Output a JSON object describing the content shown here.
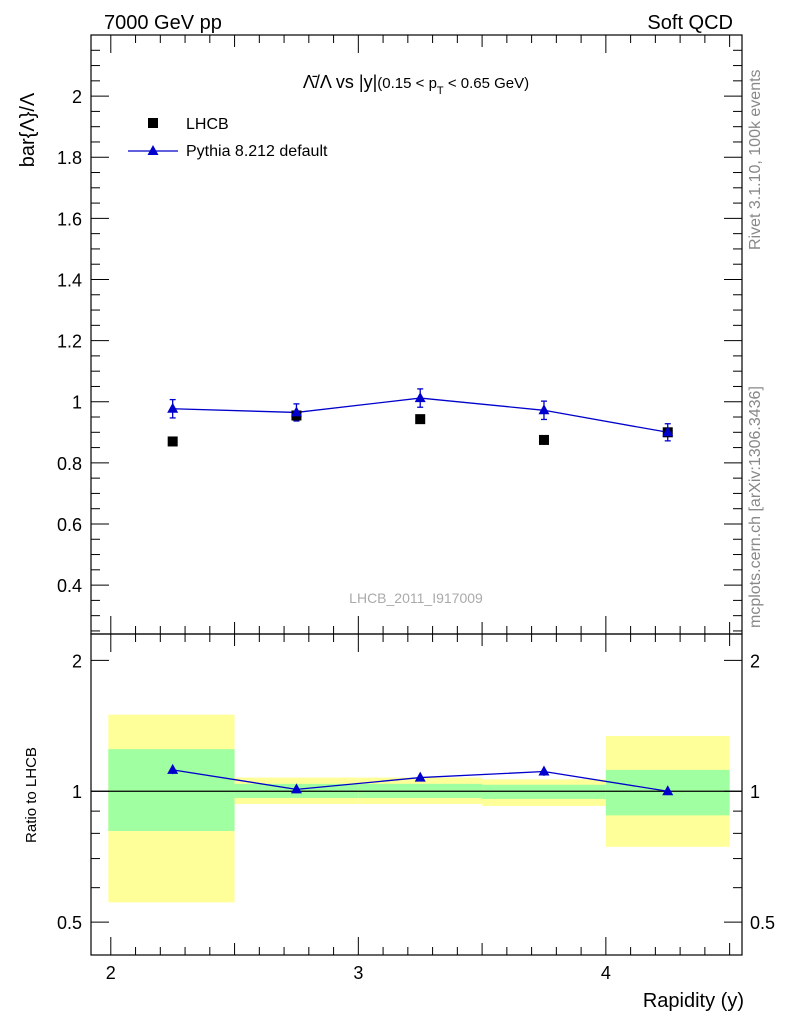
{
  "header": {
    "left": "7000 GeV pp",
    "right": "Soft QCD"
  },
  "side_labels": {
    "rivet": "Rivet 3.1.10,  100k events",
    "source": "mcplots.cern.ch [arXiv:1306.3436]"
  },
  "watermark": "LHCB_2011_I917009",
  "colors": {
    "mc": "#0000cc",
    "data": "#000000",
    "band_inner": "#a0ff a0",
    "band_outer": "#ffff99"
  },
  "chart_data": [
    {
      "type": "scatter",
      "panel": "main",
      "title": {
        "prefix": "Λ̄/Λ vs |y|",
        "suffix": "(0.15 < p",
        "sub": "T",
        "end": " < 0.65 GeV)"
      },
      "ylabel": "bar{Λ}/Λ",
      "xlim": [
        1.92,
        4.55
      ],
      "ylim": [
        0.24,
        2.2
      ],
      "yticks": [
        0.4,
        0.6,
        0.8,
        1,
        1.2,
        1.4,
        1.6,
        1.8,
        2
      ],
      "ytick_labels": [
        "0.4",
        "0.6",
        "0.8",
        "1",
        "1.2",
        "1.4",
        "1.6",
        "1.8",
        "2"
      ],
      "legend_position": "top-left",
      "series": [
        {
          "name": "LHCB",
          "kind": "data",
          "x": [
            2.25,
            2.75,
            3.25,
            3.75,
            4.25
          ],
          "y": [
            0.87,
            0.955,
            0.943,
            0.875,
            0.9
          ]
        },
        {
          "name": "Pythia 8.212 default",
          "kind": "mc",
          "x": [
            2.25,
            2.75,
            3.25,
            3.75,
            4.25
          ],
          "y": [
            0.977,
            0.965,
            1.012,
            0.972,
            0.9
          ],
          "yerr": [
            0.03,
            0.028,
            0.03,
            0.03,
            0.028
          ]
        }
      ]
    },
    {
      "type": "scatter",
      "panel": "ratio",
      "ylabel": "Ratio to LHCB",
      "xlabel": "Rapidity (y)",
      "yscale": "log",
      "xlim": [
        1.92,
        4.55
      ],
      "ylim": [
        0.42,
        2.3
      ],
      "xticks": [
        2,
        3,
        4
      ],
      "xtick_labels": [
        "2",
        "3",
        "4"
      ],
      "yticks": [
        0.5,
        1,
        2
      ],
      "ytick_labels": [
        "0.5",
        "1",
        "2"
      ],
      "bands": [
        {
          "x0": 1.99,
          "x1": 2.5,
          "inner": [
            0.81,
            1.25
          ],
          "outer": [
            0.555,
            1.5
          ]
        },
        {
          "x0": 2.5,
          "x1": 3.0,
          "inner": [
            0.965,
            1.04
          ],
          "outer": [
            0.935,
            1.075
          ]
        },
        {
          "x0": 3.0,
          "x1": 3.5,
          "inner": [
            0.965,
            1.04
          ],
          "outer": [
            0.935,
            1.075
          ]
        },
        {
          "x0": 3.5,
          "x1": 4.0,
          "inner": [
            0.96,
            1.035
          ],
          "outer": [
            0.925,
            1.065
          ]
        },
        {
          "x0": 4.0,
          "x1": 4.5,
          "inner": [
            0.88,
            1.12
          ],
          "outer": [
            0.745,
            1.34
          ]
        }
      ],
      "series": [
        {
          "name": "Pythia 8.212 default",
          "kind": "mc",
          "x": [
            2.25,
            2.75,
            3.25,
            3.75,
            4.25
          ],
          "y": [
            1.12,
            1.01,
            1.075,
            1.11,
            1.0
          ],
          "yerr": [
            0.025,
            0.02,
            0.02,
            0.025,
            0.02
          ]
        }
      ]
    }
  ]
}
